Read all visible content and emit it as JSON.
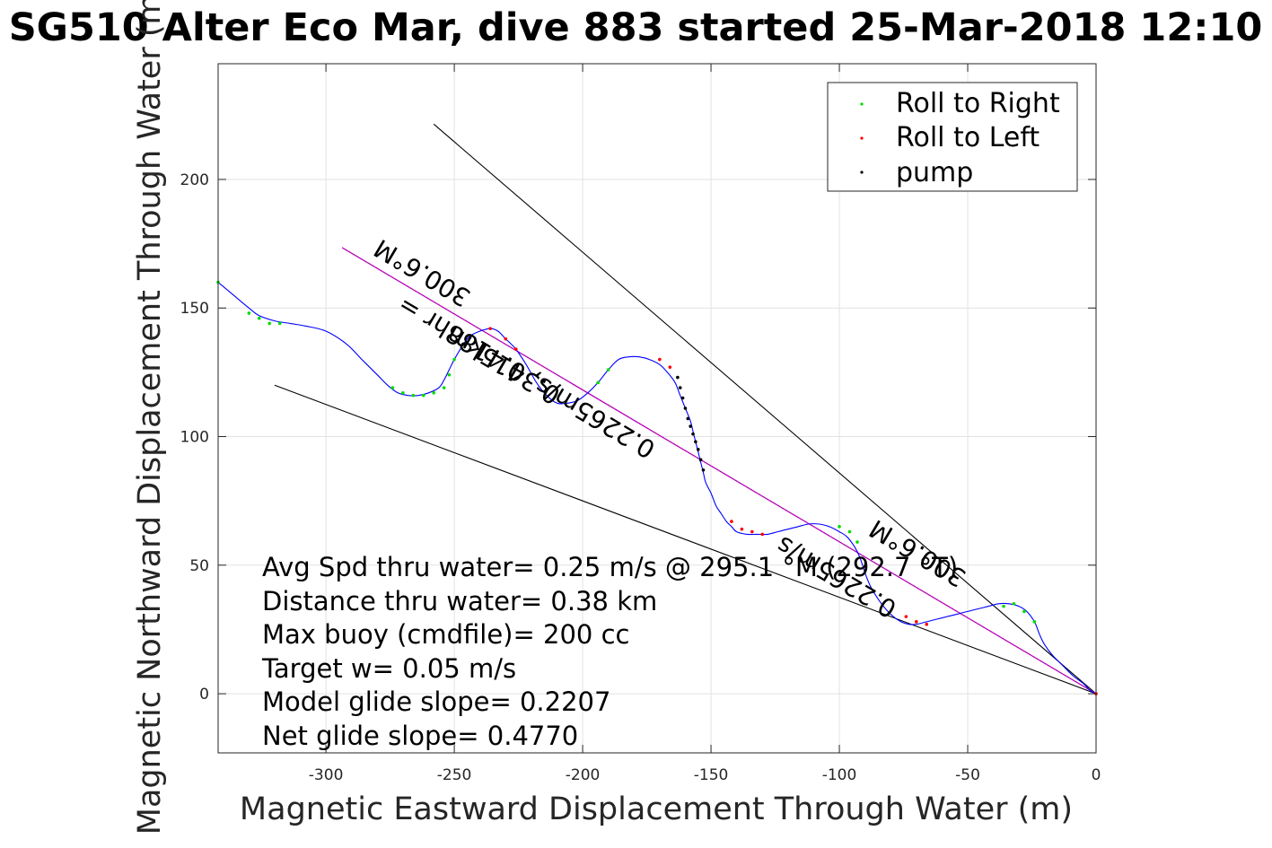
{
  "chart_data": {
    "type": "line",
    "title": "SG510 Alter Eco Mar, dive 883 started 25-Mar-2018 12:10",
    "xlabel": "Magnetic Eastward Displacement Through Water (m)",
    "ylabel": "Magnetic Northward Displacement Through Water (m)",
    "xlim": [
      -342,
      0
    ],
    "ylim": [
      -23,
      245
    ],
    "xticks": [
      -300,
      -250,
      -200,
      -150,
      -100,
      -50,
      0
    ],
    "yticks": [
      0,
      50,
      100,
      150,
      200
    ],
    "xtick_labels": [
      "-300",
      "-250",
      "-200",
      "-150",
      "-100",
      "-50",
      "0"
    ],
    "ytick_labels": [
      "0",
      "50",
      "100",
      "150",
      "200"
    ],
    "grid": true,
    "legend_position": "top-right",
    "legend": [
      {
        "label": "Roll to Right",
        "color": "#00dd00"
      },
      {
        "label": "Roll to Left",
        "color": "#ff0000"
      },
      {
        "label": "pump",
        "color": "#000000"
      }
    ],
    "track": {
      "name": "track",
      "color": "#0000ff",
      "x": [
        -342,
        -336,
        -330,
        -326,
        -320,
        -314,
        -308,
        -300,
        -292,
        -286,
        -280,
        -276,
        -272,
        -268,
        -264,
        -260,
        -256,
        -254,
        -252,
        -250,
        -247,
        -244,
        -240,
        -236,
        -233,
        -230,
        -226,
        -222,
        -218,
        -214,
        -210,
        -206,
        -202,
        -198,
        -194,
        -190,
        -186,
        -182,
        -178,
        -174,
        -170,
        -167,
        -164,
        -162,
        -160,
        -158,
        -157,
        -156,
        -155,
        -154,
        -153,
        -152,
        -150,
        -148,
        -146,
        -144,
        -142,
        -140,
        -136,
        -132,
        -128,
        -124,
        -120,
        -116,
        -112,
        -108,
        -104,
        -100,
        -97,
        -94,
        -92,
        -90,
        -88,
        -85,
        -82,
        -79,
        -76,
        -73,
        -70,
        -66,
        -62,
        -58,
        -54,
        -50,
        -46,
        -42,
        -38,
        -34,
        -30,
        -27,
        -24,
        -22,
        -20,
        -17,
        -13,
        -9,
        -5,
        -2,
        0
      ],
      "y": [
        160,
        155,
        150,
        147,
        145,
        144,
        143,
        141,
        136,
        130,
        124,
        120,
        117,
        116,
        116,
        117,
        119,
        122,
        126,
        130,
        135,
        139,
        141,
        142,
        141,
        138,
        134,
        128,
        121,
        116,
        113,
        113,
        114,
        117,
        121,
        126,
        130,
        131,
        131,
        130,
        128,
        125,
        121,
        116,
        111,
        106,
        102,
        98,
        94,
        90,
        86,
        82,
        78,
        73,
        70,
        67,
        65,
        63,
        62,
        62,
        62,
        63,
        64,
        65,
        66,
        66,
        65,
        63,
        61,
        57,
        53,
        47,
        42,
        37,
        33,
        30,
        28,
        27,
        27,
        28,
        29,
        30,
        31,
        32,
        33,
        34,
        35,
        35,
        34,
        32,
        28,
        23,
        19,
        15,
        11,
        7,
        4,
        1,
        0
      ]
    },
    "roll_right_points": [
      {
        "x": -342,
        "y": 160
      },
      {
        "x": -330,
        "y": 148
      },
      {
        "x": -326,
        "y": 146
      },
      {
        "x": -322,
        "y": 144
      },
      {
        "x": -318,
        "y": 144
      },
      {
        "x": -274,
        "y": 119
      },
      {
        "x": -270,
        "y": 117
      },
      {
        "x": -266,
        "y": 116
      },
      {
        "x": -262,
        "y": 116
      },
      {
        "x": -258,
        "y": 117
      },
      {
        "x": -254,
        "y": 119
      },
      {
        "x": -252,
        "y": 124
      },
      {
        "x": -250,
        "y": 130
      },
      {
        "x": -194,
        "y": 121
      },
      {
        "x": -190,
        "y": 126
      },
      {
        "x": -100,
        "y": 65
      },
      {
        "x": -96,
        "y": 63
      },
      {
        "x": -93,
        "y": 59
      },
      {
        "x": -36,
        "y": 34
      },
      {
        "x": -32,
        "y": 35
      },
      {
        "x": -28,
        "y": 32
      },
      {
        "x": -24,
        "y": 28
      }
    ],
    "roll_left_points": [
      {
        "x": -236,
        "y": 142
      },
      {
        "x": -230,
        "y": 138
      },
      {
        "x": -226,
        "y": 134
      },
      {
        "x": -170,
        "y": 130
      },
      {
        "x": -166,
        "y": 127
      },
      {
        "x": -142,
        "y": 67
      },
      {
        "x": -138,
        "y": 64
      },
      {
        "x": -134,
        "y": 63
      },
      {
        "x": -130,
        "y": 62
      },
      {
        "x": -74,
        "y": 30
      },
      {
        "x": -70,
        "y": 28
      },
      {
        "x": -66,
        "y": 27
      },
      {
        "x": 0,
        "y": 0
      }
    ],
    "pump_points": [
      {
        "x": -163,
        "y": 123
      },
      {
        "x": -162,
        "y": 119
      },
      {
        "x": -161,
        "y": 115
      },
      {
        "x": -160,
        "y": 111
      },
      {
        "x": -159,
        "y": 107
      },
      {
        "x": -158,
        "y": 104
      },
      {
        "x": -157,
        "y": 101
      },
      {
        "x": -156,
        "y": 98
      },
      {
        "x": -155,
        "y": 95
      },
      {
        "x": -154,
        "y": 91
      },
      {
        "x": -153,
        "y": 87
      }
    ],
    "heading_line": {
      "color": "#cc00cc",
      "x": [
        0,
        -293.7
      ],
      "y": [
        0,
        173.5
      ]
    },
    "bounding_lines": [
      {
        "color": "#000000",
        "x": [
          0,
          -258
        ],
        "y": [
          0,
          221.5
        ]
      },
      {
        "color": "#000000",
        "x": [
          0,
          -320
        ],
        "y": [
          0,
          120
        ]
      }
    ],
    "rotated_labels": [
      {
        "text": "300.6°M",
        "x": -243,
        "y": 156,
        "rotation": 210.6
      },
      {
        "text": "0.3415km",
        "x": -208,
        "y": 118,
        "rotation": 210.6
      },
      {
        "text": "0.2265m/s, 0.4188hr =",
        "x": -171,
        "y": 97,
        "rotation": 210.6
      },
      {
        "text": "300.6°M",
        "x": -50,
        "y": 47,
        "rotation": 210.6
      },
      {
        "text": "0.2265m/s",
        "x": -77,
        "y": 35,
        "rotation": 210.6
      }
    ],
    "annotations": [
      "Avg Spd thru water=  0.25 m/s @ 295.1 °M (292.7 °T)",
      "Distance thru water=  0.38 km",
      "Max buoy (cmdfile)= 200 cc",
      "Target w= 0.05 m/s",
      "Model glide slope= 0.2207",
      "Net glide slope= 0.4770"
    ]
  }
}
